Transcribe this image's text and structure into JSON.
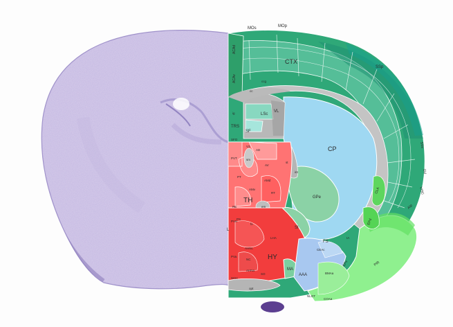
{
  "colors": {
    "background": "#fdfdfd",
    "nissl": "#c8bde0",
    "nissl_dark": "#7a68b0",
    "isocortex_dark": "#1e9a5c",
    "isocortex_light": "#2fb58a",
    "striatum": "#98d6f2",
    "pallidum": "#8fd4a4",
    "thalamus": "#ff7070",
    "hypothalamus": "#f23a3a",
    "fiber": "#c8c8c8",
    "olfactory": "#8ff08f"
  },
  "labels": {
    "MOs": "MOs",
    "MOp": "MOp",
    "SSp": "SSp",
    "SSs": "SSs",
    "GU": "GU",
    "VISC": "VISC",
    "AIp": "AIp",
    "PIR": "PIR",
    "ACAd": "ACAd",
    "ACAv": "ACAv",
    "CTX": "CTX",
    "CP": "CP",
    "GPe": "GPe",
    "SI": "SI",
    "FS": "FS",
    "TH": "TH",
    "HY": "HY",
    "LSc": "LSc",
    "TRS": "TRS",
    "SF": "SF",
    "VL": "VL",
    "MA": "MA",
    "AAA": "AAA",
    "CEAc": "CEAc",
    "CLA": "CLA",
    "EPd": "EPd",
    "EPv": "EPv",
    "NLOT": "NLOT",
    "COAa": "COAa",
    "BMAa": "BMAa",
    "IA": "IA",
    "PVT": "PVT",
    "PT": "PT",
    "AV": "AV",
    "AMd": "AMd",
    "AMv": "AMv",
    "RT": "RT",
    "RE": "RE",
    "IAD": "IAD",
    "sm": "sm",
    "PVH": "PVH",
    "fx": "fx",
    "LHA": "LHA",
    "AHNc": "AHNc",
    "SCH": "SCH",
    "SO": "SO",
    "opt": "opt",
    "ccg": "ccg",
    "cc": "cc",
    "st": "st",
    "int": "int",
    "em": "em",
    "AD": "AD",
    "V3": "V3",
    "VL2": "V3",
    "PVa": "PVa",
    "ADP": "ADP",
    "PS": "PS",
    "SFO": "SFO",
    "Ll": "L",
    "mtt": "mtt",
    "ig": "ig",
    "so": "so",
    "NC": "NC",
    "AHNa": "AHNa"
  }
}
